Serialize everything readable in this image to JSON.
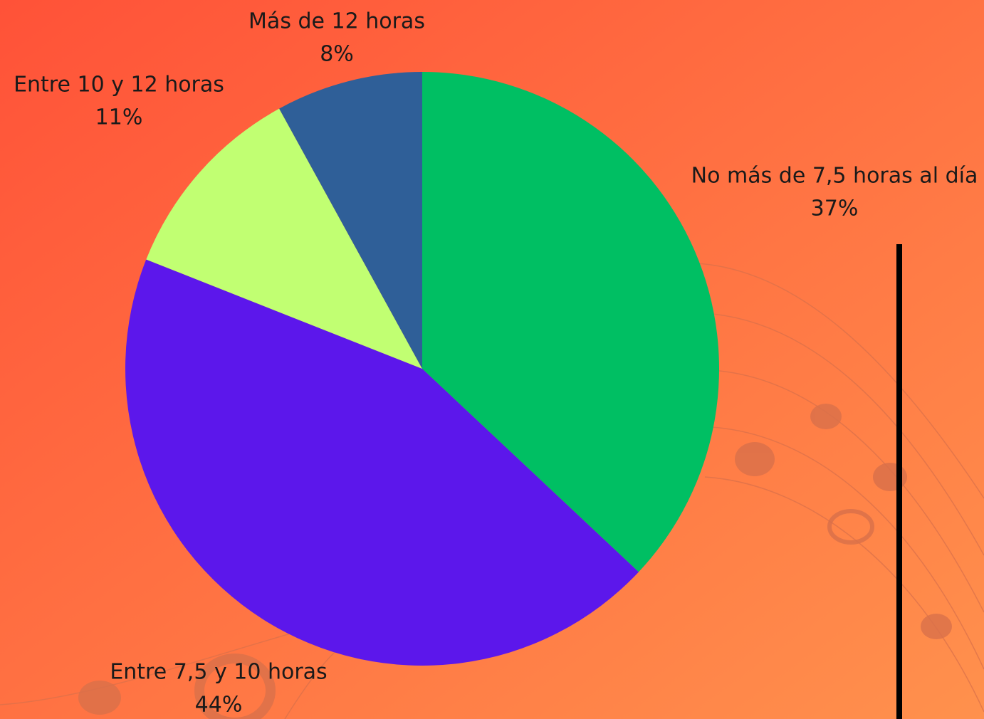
{
  "chart_data": {
    "type": "pie",
    "categories": [
      "No más de 7,5 horas al día",
      "Entre 7,5 y 10 horas",
      "Entre 10 y 12 horas",
      "Más de 12 horas"
    ],
    "values": [
      37,
      44,
      11,
      8
    ],
    "value_labels": [
      "37%",
      "44%",
      "11%",
      "8%"
    ],
    "colors": [
      "#00bf63",
      "#5c17eb",
      "#c1ff72",
      "#2f5f98"
    ]
  }
}
